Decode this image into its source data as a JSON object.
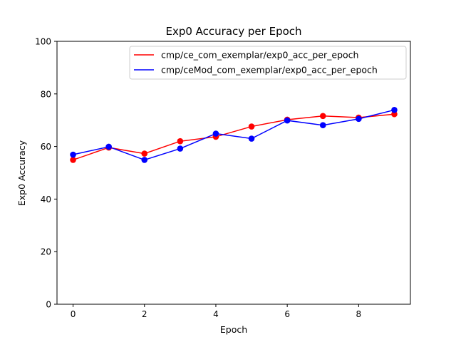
{
  "chart_data": {
    "type": "line",
    "title": "Exp0 Accuracy per Epoch",
    "xlabel": "Epoch",
    "ylabel": "Exp0 Accuracy",
    "x": [
      0,
      1,
      2,
      3,
      4,
      5,
      6,
      7,
      8,
      9
    ],
    "xlim": [
      -0.45,
      9.45
    ],
    "ylim": [
      0,
      100
    ],
    "xticks": [
      0,
      2,
      4,
      6,
      8
    ],
    "yticks": [
      0,
      20,
      40,
      60,
      80,
      100
    ],
    "grid": false,
    "legend_position": "top-right",
    "series": [
      {
        "name": "cmp/ce_com_exemplar/exp0_acc_per_epoch",
        "color": "#ff0000",
        "values": [
          54.9,
          59.6,
          57.3,
          62.0,
          63.7,
          67.6,
          70.2,
          71.6,
          71.0,
          72.3
        ]
      },
      {
        "name": "cmp/ceMod_com_exemplar/exp0_acc_per_epoch",
        "color": "#0000ff",
        "values": [
          56.9,
          59.9,
          54.9,
          59.2,
          64.9,
          63.0,
          69.9,
          68.1,
          70.5,
          73.9
        ]
      }
    ]
  }
}
